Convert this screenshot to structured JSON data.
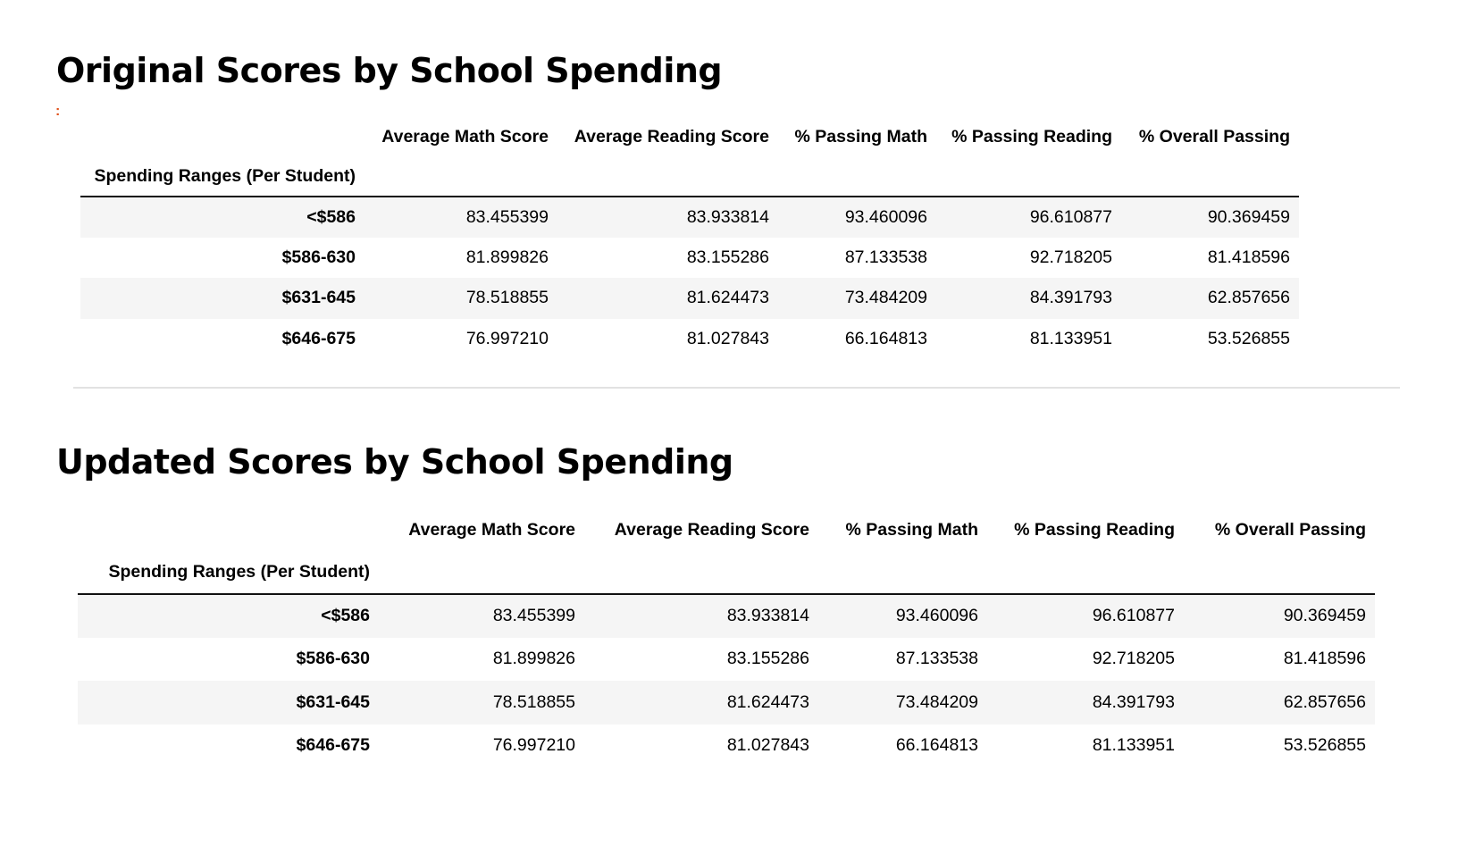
{
  "sections": [
    {
      "title": "Original Scores by School Spending",
      "index_name": "Spending Ranges (Per Student)",
      "columns": [
        "Average Math Score",
        "Average Reading Score",
        "% Passing Math",
        "% Passing Reading",
        "% Overall Passing"
      ],
      "rows": [
        {
          "label": "<$586",
          "values": [
            "83.455399",
            "83.933814",
            "93.460096",
            "96.610877",
            "90.369459"
          ]
        },
        {
          "label": "$586-630",
          "values": [
            "81.899826",
            "83.155286",
            "87.133538",
            "92.718205",
            "81.418596"
          ]
        },
        {
          "label": "$631-645",
          "values": [
            "78.518855",
            "81.624473",
            "73.484209",
            "84.391793",
            "62.857656"
          ]
        },
        {
          "label": "$646-675",
          "values": [
            "76.997210",
            "81.027843",
            "66.164813",
            "81.133951",
            "53.526855"
          ]
        }
      ]
    },
    {
      "title": "Updated Scores by School Spending",
      "index_name": "Spending Ranges (Per Student)",
      "columns": [
        "Average Math Score",
        "Average Reading Score",
        "% Passing Math",
        "% Passing Reading",
        "% Overall Passing"
      ],
      "rows": [
        {
          "label": "<$586",
          "values": [
            "83.455399",
            "83.933814",
            "93.460096",
            "96.610877",
            "90.369459"
          ]
        },
        {
          "label": "$586-630",
          "values": [
            "81.899826",
            "83.155286",
            "87.133538",
            "92.718205",
            "81.418596"
          ]
        },
        {
          "label": "$631-645",
          "values": [
            "78.518855",
            "81.624473",
            "73.484209",
            "84.391793",
            "62.857656"
          ]
        },
        {
          "label": "$646-675",
          "values": [
            "76.997210",
            "81.027843",
            "66.164813",
            "81.133951",
            "53.526855"
          ]
        }
      ]
    }
  ],
  "colors": {
    "stripe": "#f5f5f5",
    "marker": "#e0521b",
    "divider": "#e2e2e2"
  },
  "icons": {
    "cell-marker": "colon-dots-icon"
  }
}
